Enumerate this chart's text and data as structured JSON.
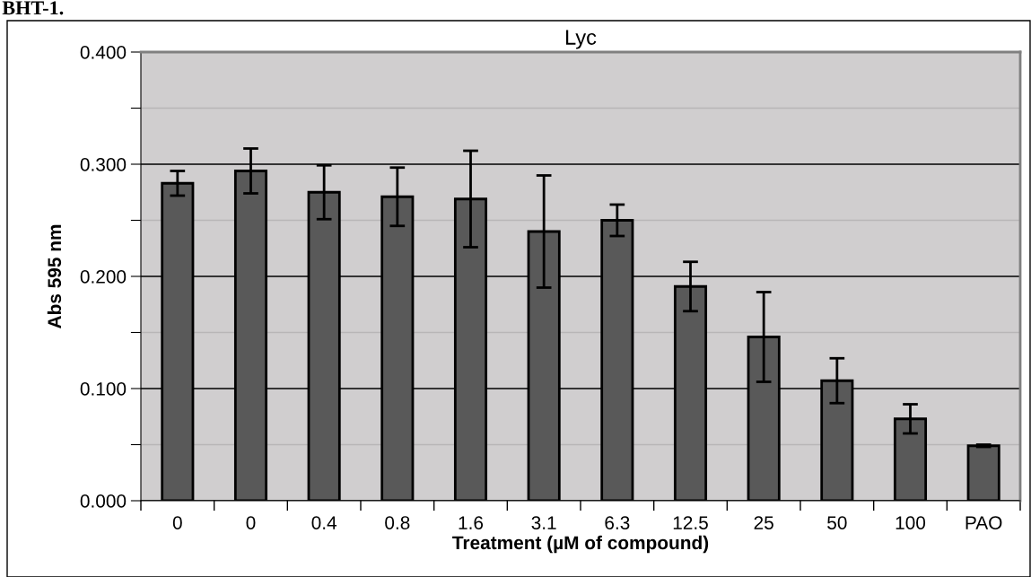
{
  "chart_data": {
    "type": "bar",
    "title": "Lyc",
    "xlabel": "Treatment (µM of compound)",
    "ylabel": "Abs 595 nm",
    "annotations": [
      "BHT-1."
    ],
    "categories": [
      "0",
      "0",
      "0.4",
      "0.8",
      "1.6",
      "3.1",
      "6.3",
      "12.5",
      "25",
      "50",
      "100",
      "PAO"
    ],
    "values": [
      0.283,
      0.294,
      0.275,
      0.271,
      0.269,
      0.24,
      0.25,
      0.191,
      0.146,
      0.107,
      0.073,
      0.049
    ],
    "errors": [
      0.011,
      0.02,
      0.024,
      0.026,
      0.043,
      0.05,
      0.014,
      0.022,
      0.04,
      0.02,
      0.013,
      0.001
    ],
    "color": "#595959",
    "ylim": [
      0,
      0.4
    ],
    "yticks": [
      {
        "value": 0,
        "label": "0.000"
      },
      {
        "value": 0.05,
        "label": null
      },
      {
        "value": 0.1,
        "label": "0.100"
      },
      {
        "value": 0.15,
        "label": null
      },
      {
        "value": 0.2,
        "label": "0.200"
      },
      {
        "value": 0.25,
        "label": null
      },
      {
        "value": 0.3,
        "label": "0.300"
      },
      {
        "value": 0.35,
        "label": null
      },
      {
        "value": 0.4,
        "label": "0.400"
      }
    ],
    "grid": "y"
  }
}
